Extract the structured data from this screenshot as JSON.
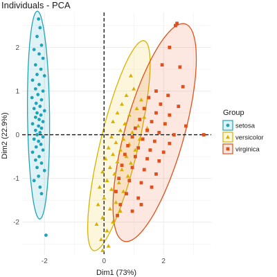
{
  "chart_data": {
    "type": "scatter",
    "title": "Individuals - PCA",
    "xlabel": "Dim1 (73%)",
    "ylabel": "Dim2 (22.9%)",
    "xlim": [
      -2.75,
      3.6
    ],
    "ylim": [
      -2.75,
      2.8
    ],
    "xticks": [
      -2,
      0,
      2
    ],
    "yticks": [
      -2,
      -1,
      0,
      1,
      2
    ],
    "xtick_labels": [
      "-2",
      "0",
      "2"
    ],
    "ytick_labels": [
      "-2",
      "-1",
      "0",
      "1",
      "2"
    ],
    "grid": true,
    "reference_lines": {
      "x": 0,
      "y": 0,
      "style": "dashed"
    },
    "legend": {
      "title": "Group",
      "placement": "right"
    },
    "series": [
      {
        "name": "setosa",
        "marker": "circle",
        "color": "#1fa3b8",
        "fill": "rgba(31,163,184,0.14)",
        "ellipse": {
          "cx": -2.2,
          "cy": 0.45,
          "rx": 2.38,
          "ry": 0.37,
          "angle_deg": 91
        },
        "points": [
          [
            -2.2,
            2.65
          ],
          [
            -2.15,
            2.45
          ],
          [
            -2.25,
            2.25
          ],
          [
            -2.1,
            2.05
          ],
          [
            -2.35,
            1.95
          ],
          [
            -2.18,
            1.85
          ],
          [
            -2.05,
            1.75
          ],
          [
            -2.3,
            1.6
          ],
          [
            -2.12,
            1.5
          ],
          [
            -2.25,
            1.38
          ],
          [
            -2.0,
            1.35
          ],
          [
            -2.4,
            1.25
          ],
          [
            -2.18,
            1.15
          ],
          [
            -2.3,
            1.05
          ],
          [
            -2.05,
            1.0
          ],
          [
            -2.22,
            0.92
          ],
          [
            -2.42,
            0.85
          ],
          [
            -2.1,
            0.8
          ],
          [
            -2.28,
            0.72
          ],
          [
            -2.15,
            0.65
          ],
          [
            -2.35,
            0.6
          ],
          [
            -2.0,
            0.55
          ],
          [
            -2.25,
            0.5
          ],
          [
            -2.12,
            0.45
          ],
          [
            -2.3,
            0.4
          ],
          [
            -2.18,
            0.35
          ],
          [
            -2.05,
            0.3
          ],
          [
            -2.4,
            0.25
          ],
          [
            -2.2,
            0.2
          ],
          [
            -2.1,
            0.15
          ],
          [
            -2.3,
            0.1
          ],
          [
            -2.15,
            0.05
          ],
          [
            -2.25,
            0.0
          ],
          [
            -2.05,
            -0.05
          ],
          [
            -2.35,
            -0.1
          ],
          [
            -2.2,
            -0.15
          ],
          [
            -2.12,
            -0.22
          ],
          [
            -2.28,
            -0.28
          ],
          [
            -2.05,
            -0.35
          ],
          [
            -2.4,
            -0.4
          ],
          [
            -2.18,
            -0.5
          ],
          [
            -2.3,
            -0.58
          ],
          [
            -2.1,
            -0.65
          ],
          [
            -2.25,
            -0.75
          ],
          [
            -2.0,
            -0.82
          ],
          [
            -2.2,
            -0.95
          ],
          [
            -2.35,
            -1.05
          ],
          [
            -2.15,
            -1.2
          ],
          [
            -2.1,
            -1.35
          ],
          [
            -1.95,
            -2.3
          ]
        ]
      },
      {
        "name": "versicolor",
        "marker": "triangle",
        "color": "#d8b100",
        "fill": "rgba(240,205,60,0.18)",
        "ellipse": {
          "cx": 0.5,
          "cy": -0.25,
          "rx": 2.55,
          "ry": 0.62,
          "angle_deg": 70
        },
        "points": [
          [
            0.9,
            1.35
          ],
          [
            1.0,
            1.05
          ],
          [
            0.75,
            0.9
          ],
          [
            1.25,
            0.8
          ],
          [
            0.6,
            0.7
          ],
          [
            1.1,
            0.6
          ],
          [
            0.45,
            0.5
          ],
          [
            0.85,
            0.45
          ],
          [
            1.35,
            0.4
          ],
          [
            0.3,
            0.3
          ],
          [
            0.7,
            0.25
          ],
          [
            1.15,
            0.2
          ],
          [
            0.55,
            0.1
          ],
          [
            0.95,
            0.05
          ],
          [
            0.25,
            -0.05
          ],
          [
            0.65,
            -0.1
          ],
          [
            1.2,
            -0.1
          ],
          [
            0.4,
            -0.18
          ],
          [
            0.85,
            -0.22
          ],
          [
            0.15,
            -0.3
          ],
          [
            0.55,
            -0.35
          ],
          [
            1.05,
            -0.35
          ],
          [
            0.3,
            -0.45
          ],
          [
            0.75,
            -0.5
          ],
          [
            0.05,
            -0.55
          ],
          [
            0.45,
            -0.62
          ],
          [
            0.9,
            -0.65
          ],
          [
            0.2,
            -0.75
          ],
          [
            0.6,
            -0.8
          ],
          [
            -0.05,
            -0.85
          ],
          [
            0.35,
            -0.9
          ],
          [
            0.8,
            -0.95
          ],
          [
            0.1,
            -1.05
          ],
          [
            0.5,
            -1.1
          ],
          [
            -0.15,
            -1.2
          ],
          [
            0.25,
            -1.25
          ],
          [
            0.65,
            -1.3
          ],
          [
            0.0,
            -1.45
          ],
          [
            0.4,
            -1.55
          ],
          [
            -0.2,
            -1.6
          ],
          [
            0.2,
            -1.7
          ],
          [
            0.55,
            -1.75
          ],
          [
            -0.05,
            -1.9
          ],
          [
            0.3,
            -2.0
          ],
          [
            -0.25,
            -2.05
          ],
          [
            0.1,
            -2.2
          ],
          [
            -0.1,
            -2.4
          ],
          [
            0.15,
            -2.55
          ],
          [
            -0.05,
            -2.65
          ],
          [
            1.45,
            0.15
          ]
        ]
      },
      {
        "name": "virginica",
        "marker": "square",
        "color": "#e0501b",
        "fill": "rgba(232,90,40,0.14)",
        "ellipse": {
          "cx": 1.7,
          "cy": 0.05,
          "rx": 2.7,
          "ry": 0.95,
          "angle_deg": 66
        },
        "points": [
          [
            2.45,
            2.55
          ],
          [
            2.4,
            2.5
          ],
          [
            2.2,
            2.0
          ],
          [
            1.95,
            1.6
          ],
          [
            2.55,
            1.55
          ],
          [
            2.65,
            1.1
          ],
          [
            1.75,
            1.0
          ],
          [
            2.15,
            0.9
          ],
          [
            1.5,
            0.85
          ],
          [
            1.9,
            0.7
          ],
          [
            2.5,
            0.65
          ],
          [
            1.35,
            0.6
          ],
          [
            1.75,
            0.5
          ],
          [
            2.2,
            0.45
          ],
          [
            3.35,
            0.0
          ],
          [
            1.2,
            0.35
          ],
          [
            1.6,
            0.3
          ],
          [
            2.05,
            0.25
          ],
          [
            2.75,
            0.2
          ],
          [
            1.05,
            0.15
          ],
          [
            1.45,
            0.1
          ],
          [
            1.85,
            0.05
          ],
          [
            2.35,
            0.0
          ],
          [
            0.95,
            -0.05
          ],
          [
            1.3,
            -0.1
          ],
          [
            1.7,
            -0.15
          ],
          [
            2.2,
            -0.2
          ],
          [
            0.8,
            -0.25
          ],
          [
            1.15,
            -0.3
          ],
          [
            1.55,
            -0.35
          ],
          [
            2.0,
            -0.4
          ],
          [
            0.7,
            -0.45
          ],
          [
            1.05,
            -0.5
          ],
          [
            1.45,
            -0.55
          ],
          [
            1.85,
            -0.6
          ],
          [
            0.6,
            -0.7
          ],
          [
            0.95,
            -0.75
          ],
          [
            1.35,
            -0.8
          ],
          [
            1.75,
            -0.9
          ],
          [
            0.5,
            -1.0
          ],
          [
            0.85,
            -1.05
          ],
          [
            1.25,
            -1.1
          ],
          [
            1.6,
            -1.2
          ],
          [
            0.4,
            -1.3
          ],
          [
            0.75,
            -1.35
          ],
          [
            1.15,
            -1.45
          ],
          [
            0.55,
            -1.6
          ],
          [
            0.95,
            -1.75
          ],
          [
            0.45,
            -1.85
          ],
          [
            1.25,
            -1.6
          ]
        ]
      }
    ]
  }
}
